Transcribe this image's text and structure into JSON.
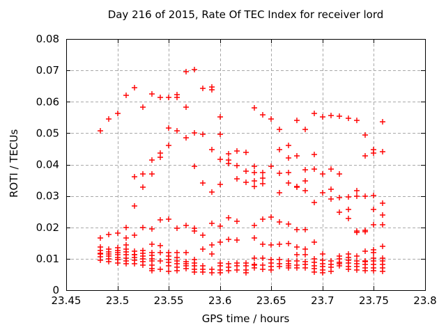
{
  "chart_data": {
    "type": "scatter",
    "title": "Day 216 of 2015, Rate Of TEC Index for receiver lord",
    "xlabel": "GPS time / hours",
    "ylabel": "ROTI / TECUs",
    "xlim": [
      23.45,
      23.8
    ],
    "ylim": [
      0,
      0.08
    ],
    "grid": true,
    "legend": "none",
    "x_ticks": {
      "values": [
        23.45,
        23.5,
        23.55,
        23.6,
        23.65,
        23.7,
        23.75,
        23.8
      ],
      "labels": [
        "23.45",
        "23.5",
        "23.55",
        "23.6",
        "23.65",
        "23.7",
        "23.75",
        "23.8"
      ]
    },
    "y_ticks": {
      "values": [
        0,
        0.01,
        0.02,
        0.03,
        0.04,
        0.05,
        0.06,
        0.07,
        0.08
      ],
      "labels": [
        "0",
        "0.01",
        "0.02",
        "0.03",
        "0.04",
        "0.05",
        "0.06",
        "0.07",
        "0.08"
      ]
    },
    "colors": {
      "background": "#ffffff",
      "axis": "#000000",
      "grid": "#a8a8a8",
      "marker": "#ff0000"
    },
    "series": [
      {
        "name": "ROTI",
        "marker": "plus",
        "color": "#ff0000",
        "columns": [
          {
            "x": 23.4833,
            "ys": [
              0.0507,
              0.0167,
              0.0137,
              0.0126,
              0.0117,
              0.0116,
              0.0106,
              0.0095
            ]
          },
          {
            "x": 23.4917,
            "ys": [
              0.0545,
              0.0178,
              0.0131,
              0.0122,
              0.0115,
              0.0108,
              0.0099,
              0.009
            ]
          },
          {
            "x": 23.5,
            "ys": [
              0.0563,
              0.0182,
              0.0136,
              0.0126,
              0.0119,
              0.0112,
              0.0104,
              0.0097,
              0.0087
            ]
          },
          {
            "x": 23.5083,
            "ys": [
              0.062,
              0.0199,
              0.0166,
              0.0143,
              0.0131,
              0.0121,
              0.0112,
              0.0103,
              0.0093,
              0.0084
            ]
          },
          {
            "x": 23.5167,
            "ys": [
              0.0645,
              0.0361,
              0.0268,
              0.0175,
              0.0124,
              0.0114,
              0.0113,
              0.0104,
              0.0095,
              0.0084
            ]
          },
          {
            "x": 23.525,
            "ys": [
              0.0583,
              0.0369,
              0.0327,
              0.0199,
              0.0126,
              0.0117,
              0.0108,
              0.0099,
              0.009,
              0.008
            ]
          },
          {
            "x": 23.5333,
            "ys": [
              0.0625,
              0.0414,
              0.0371,
              0.0194,
              0.0146,
              0.0119,
              0.011,
              0.01,
              0.0092,
              0.008,
              0.0069,
              0.0062
            ]
          },
          {
            "x": 23.5417,
            "ys": [
              0.0613,
              0.0437,
              0.0423,
              0.0224,
              0.0141,
              0.0119,
              0.0093,
              0.0067
            ]
          },
          {
            "x": 23.55,
            "ys": [
              0.0613,
              0.0516,
              0.046,
              0.0225,
              0.012,
              0.0108,
              0.0098,
              0.0089,
              0.0078,
              0.006
            ]
          },
          {
            "x": 23.5583,
            "ys": [
              0.0623,
              0.0613,
              0.0507,
              0.0198,
              0.012,
              0.0104,
              0.0093,
              0.0084,
              0.0073,
              0.0062
            ]
          },
          {
            "x": 23.5667,
            "ys": [
              0.0695,
              0.0583,
              0.0486,
              0.0205,
              0.0119,
              0.009,
              0.0084,
              0.0078,
              0.0069
            ]
          },
          {
            "x": 23.575,
            "ys": [
              0.0702,
              0.0501,
              0.0395,
              0.0198,
              0.0189,
              0.0098,
              0.0087,
              0.0078,
              0.0067,
              0.0058
            ]
          },
          {
            "x": 23.5833,
            "ys": [
              0.0643,
              0.0496,
              0.0341,
              0.0174,
              0.0131,
              0.0078,
              0.0067,
              0.0058
            ]
          },
          {
            "x": 23.5917,
            "ys": [
              0.0647,
              0.0638,
              0.0447,
              0.0313,
              0.0213,
              0.0143,
              0.0115,
              0.0067,
              0.0056
            ]
          },
          {
            "x": 23.6,
            "ys": [
              0.0552,
              0.0496,
              0.0417,
              0.0337,
              0.0204,
              0.0154,
              0.0087,
              0.0077,
              0.0065,
              0.0056
            ]
          },
          {
            "x": 23.6083,
            "ys": [
              0.0435,
              0.0414,
              0.0404,
              0.023,
              0.0161,
              0.0084,
              0.0073,
              0.0062
            ]
          },
          {
            "x": 23.6167,
            "ys": [
              0.0443,
              0.0397,
              0.0355,
              0.0219,
              0.016,
              0.0087,
              0.0077,
              0.0065
            ]
          },
          {
            "x": 23.625,
            "ys": [
              0.0438,
              0.0378,
              0.0344,
              0.0087,
              0.0078,
              0.0065,
              0.0056
            ]
          },
          {
            "x": 23.6333,
            "ys": [
              0.058,
              0.0394,
              0.0375,
              0.0348,
              0.033,
              0.0205,
              0.0166,
              0.0102,
              0.0081,
              0.0079,
              0.0071
            ]
          },
          {
            "x": 23.6417,
            "ys": [
              0.0559,
              0.0374,
              0.0357,
              0.0338,
              0.0226,
              0.0146,
              0.0102,
              0.008,
              0.0066
            ]
          },
          {
            "x": 23.65,
            "ys": [
              0.0546,
              0.0395,
              0.0232,
              0.0145,
              0.0097,
              0.0087,
              0.0075,
              0.0065
            ]
          },
          {
            "x": 23.6583,
            "ys": [
              0.0511,
              0.0447,
              0.0372,
              0.0311,
              0.0217,
              0.0146,
              0.0097,
              0.0085,
              0.0075
            ]
          },
          {
            "x": 23.6667,
            "ys": [
              0.0461,
              0.0421,
              0.0374,
              0.0341,
              0.021,
              0.0149,
              0.0093,
              0.0085,
              0.0078,
              0.007
            ]
          },
          {
            "x": 23.675,
            "ys": [
              0.0541,
              0.0427,
              0.0331,
              0.0328,
              0.0193,
              0.0137,
              0.0113,
              0.0093,
              0.008,
              0.007
            ]
          },
          {
            "x": 23.6833,
            "ys": [
              0.0512,
              0.0383,
              0.0348,
              0.0318,
              0.0193,
              0.0131,
              0.0113,
              0.0091,
              0.0082,
              0.0072
            ]
          },
          {
            "x": 23.6917,
            "ys": [
              0.0562,
              0.0433,
              0.0385,
              0.0279,
              0.0152,
              0.01,
              0.0088,
              0.0078,
              0.0068,
              0.0058
            ]
          },
          {
            "x": 23.7,
            "ys": [
              0.0551,
              0.037,
              0.0311,
              0.0115,
              0.0095,
              0.0085,
              0.0075,
              0.0065,
              0.0055
            ]
          },
          {
            "x": 23.7083,
            "ys": [
              0.0556,
              0.0385,
              0.0321,
              0.0291,
              0.0093,
              0.0083,
              0.0073,
              0.006
            ]
          },
          {
            "x": 23.7167,
            "ys": [
              0.0554,
              0.037,
              0.0294,
              0.0249,
              0.0109,
              0.0099,
              0.0089,
              0.0084,
              0.0078
            ]
          },
          {
            "x": 23.725,
            "ys": [
              0.0548,
              0.0298,
              0.0256,
              0.0228,
              0.0115,
              0.0104,
              0.0095,
              0.0086,
              0.0076,
              0.0067
            ]
          },
          {
            "x": 23.7333,
            "ys": [
              0.0541,
              0.0318,
              0.03,
              0.0188,
              0.0184,
              0.0108,
              0.0093,
              0.0084,
              0.0075,
              0.0065
            ]
          },
          {
            "x": 23.7417,
            "ys": [
              0.0495,
              0.0427,
              0.03,
              0.0191,
              0.0187,
              0.0123,
              0.0093,
              0.009,
              0.0082,
              0.0071,
              0.0062
            ]
          },
          {
            "x": 23.75,
            "ys": [
              0.0447,
              0.0437,
              0.0302,
              0.0257,
              0.0208,
              0.0129,
              0.012,
              0.0102,
              0.0092,
              0.0082,
              0.0071,
              0.0062
            ]
          },
          {
            "x": 23.7583,
            "ys": [
              0.0537,
              0.0442,
              0.0278,
              0.0239,
              0.0208,
              0.0139,
              0.0102,
              0.0092,
              0.0082,
              0.0071,
              0.0059
            ]
          }
        ]
      }
    ]
  }
}
